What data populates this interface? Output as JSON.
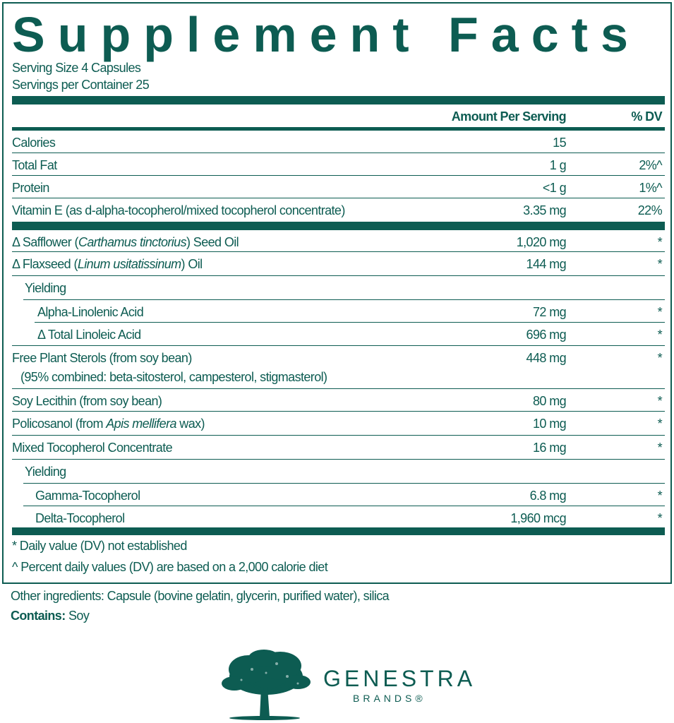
{
  "title": "Supplement Facts",
  "serving_size": "Serving Size 4 Capsules",
  "servings_per_container": "Servings per Container 25",
  "header": {
    "amount": "Amount Per Serving",
    "dv": "% DV"
  },
  "nutrients": [
    {
      "label": "Calories",
      "amount": "15",
      "dv": ""
    },
    {
      "label": "Total Fat",
      "amount": "1 g",
      "dv": "2%^"
    },
    {
      "label": "Protein",
      "amount": "<1 g",
      "dv": "1%^"
    },
    {
      "label": "Vitamin E (as d-alpha-tocopherol/mixed tocopherol concentrate)",
      "amount": "3.35 mg",
      "dv": "22%"
    }
  ],
  "ingredients": [
    {
      "pre": "Δ Safflower (",
      "italic": "Carthamus tinctorius",
      "post": ") Seed Oil",
      "amount": "1,020 mg",
      "dv": "*"
    },
    {
      "pre": "Δ Flaxseed (",
      "italic": "Linum usitatissinum",
      "post": ") Oil",
      "amount": "144 mg",
      "dv": "*"
    },
    {
      "label": "Yielding"
    },
    {
      "label": "Alpha-Linolenic Acid",
      "amount": "72 mg",
      "dv": "*"
    },
    {
      "label": "Δ Total Linoleic Acid",
      "amount": "696 mg",
      "dv": "*"
    },
    {
      "label": "Free Plant Sterols (from soy bean)",
      "sub": "(95% combined: beta-sitosterol, campesterol, stigmasterol)",
      "amount": "448 mg",
      "dv": "*"
    },
    {
      "label": "Soy Lecithin (from soy bean)",
      "amount": "80 mg",
      "dv": "*"
    },
    {
      "pre": "Policosanol (from ",
      "italic": "Apis mellifera",
      "post": " wax)",
      "amount": "10 mg",
      "dv": "*"
    },
    {
      "label": "Mixed Tocopherol Concentrate",
      "amount": "16 mg",
      "dv": "*"
    },
    {
      "label": "Yielding"
    },
    {
      "label": "Gamma-Tocopherol",
      "amount": "6.8 mg",
      "dv": "*"
    },
    {
      "label": "Delta-Tocopherol",
      "amount": "1,960 mcg",
      "dv": "*"
    }
  ],
  "footnotes": [
    "* Daily value (DV) not established",
    "^ Percent daily values (DV) are based on a 2,000 calorie diet"
  ],
  "other_ingredients": "Other ingredients: Capsule (bovine gelatin, glycerin, purified water), silica",
  "contains": {
    "label": "Contains:",
    "value": " Soy"
  },
  "brand": {
    "name": "GENESTRA",
    "sub": "BRANDS®"
  },
  "colors": {
    "primary": "#0d5c52"
  }
}
